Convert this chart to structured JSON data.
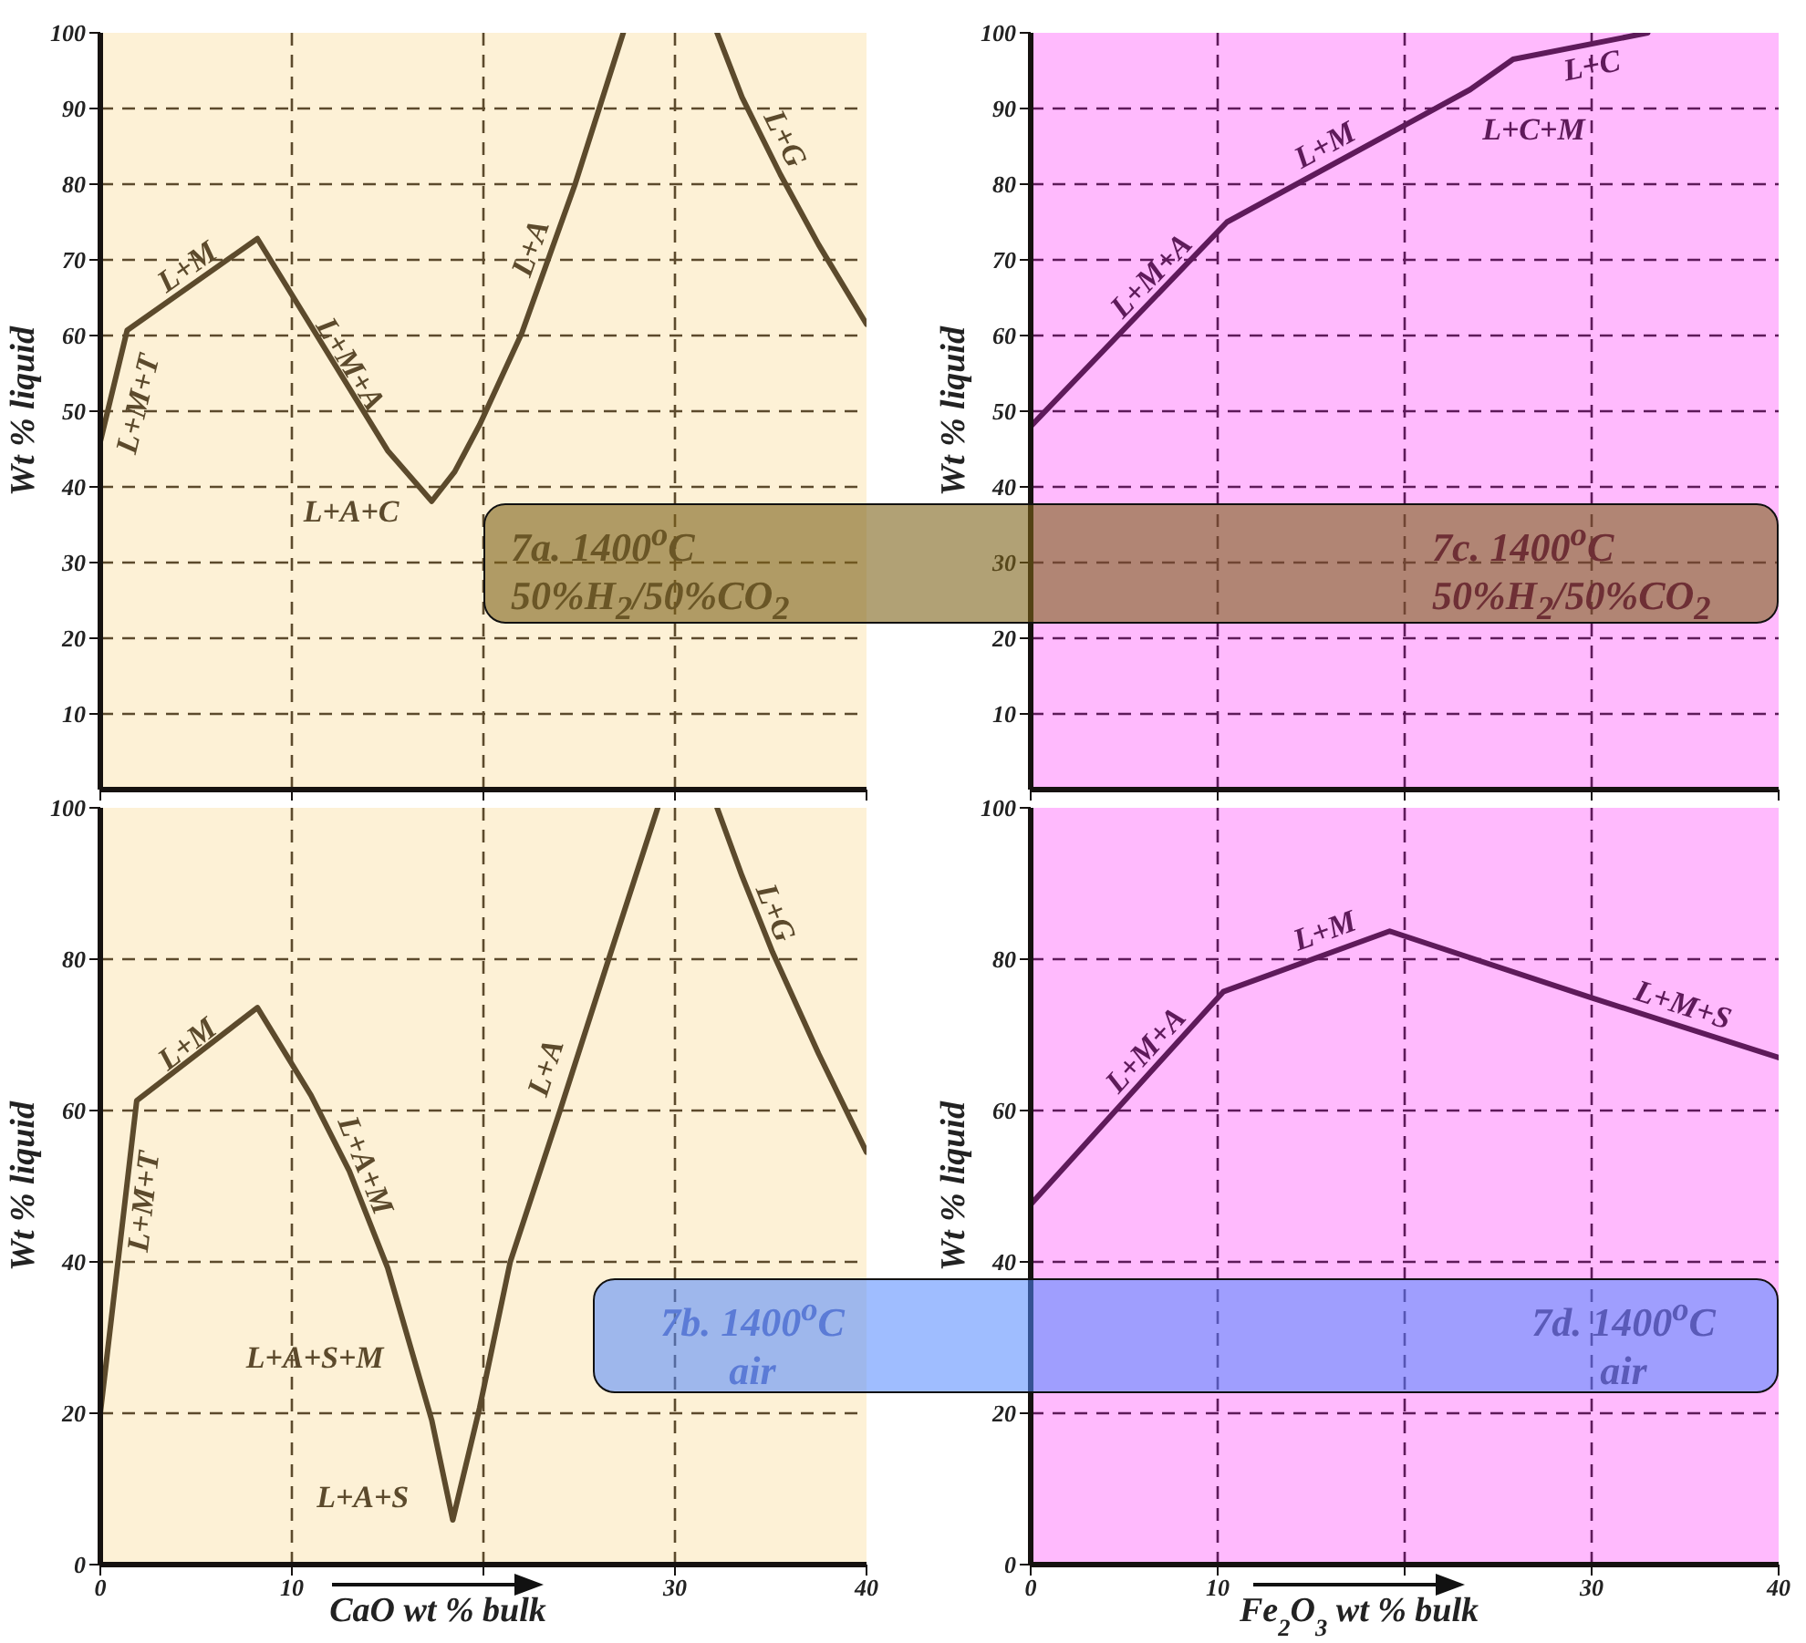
{
  "chart_data": [
    {
      "type": "line",
      "ylabel": "Wt % liquid",
      "x": [
        0,
        1.4,
        8.2,
        15,
        17.3,
        18.5,
        19.8,
        22,
        24.8,
        27.3,
        30,
        32.2,
        33.5,
        35.5,
        37.5,
        40
      ],
      "values": [
        46,
        60.7,
        72.8,
        44.8,
        38.1,
        42,
        48.2,
        60.3,
        80.1,
        100,
        null,
        100,
        91.5,
        81.3,
        72,
        61.5
      ],
      "color": "#5c4a2c",
      "xlim": [
        0,
        40
      ],
      "xticks": [
        0,
        10,
        20,
        30,
        40
      ],
      "ylim": [
        0,
        100
      ],
      "yticks": [
        10,
        20,
        30,
        40,
        50,
        60,
        70,
        80,
        90,
        100
      ],
      "grid": true,
      "tick_labels": "y",
      "annotations": [
        "L+M+T",
        "L+M",
        "L+M+A",
        "L+A+C",
        "L+A",
        "L+G",
        "7a. 1400$^{o}$C",
        "50%H$_{2}$/50%CO$_{2}$"
      ]
    },
    {
      "type": "line",
      "ylabel": "Wt % liquid",
      "x": [
        0,
        10.5,
        23.5,
        25.8,
        33
      ],
      "values": [
        48,
        75,
        92.5,
        96.5,
        100
      ],
      "color": "#5e1a5a",
      "xlim": [
        0,
        40
      ],
      "xticks": [
        0,
        10,
        20,
        30,
        40
      ],
      "ylim": [
        0,
        100
      ],
      "yticks": [
        10,
        20,
        30,
        40,
        50,
        60,
        70,
        80,
        90,
        100
      ],
      "grid": true,
      "tick_labels": "y",
      "annotations": [
        "L+M+A",
        "L+M",
        "L+C+M",
        "L+C",
        "7c. 1400$^{o}$C",
        "50%H$_{2}$/50%CO$_{2}$"
      ]
    },
    {
      "type": "line",
      "ylabel": "Wt % liquid",
      "xlabel": "CaO wt % bulk",
      "x": [
        0,
        1.9,
        8.2,
        11,
        13,
        15,
        17.3,
        18.4,
        19.8,
        21.4,
        24,
        26.5,
        29.1,
        30.5,
        32.2,
        33.5,
        35.1,
        37.5,
        40
      ],
      "values": [
        20,
        61.3,
        73.6,
        62,
        52,
        39.2,
        19.1,
        5.9,
        20.7,
        40,
        60,
        79.7,
        100,
        null,
        100,
        91,
        80.9,
        67.5,
        54.5
      ],
      "color": "#5c4a2c",
      "xlim": [
        0,
        40
      ],
      "xticks": [
        0,
        10,
        {
          "value": 20,
          "label": null
        },
        30,
        40
      ],
      "ylim": [
        0,
        100
      ],
      "yticks": [
        0,
        20,
        40,
        60,
        80,
        100
      ],
      "grid": true,
      "annotations": [
        "L+M+T",
        "L+M",
        "L+A+M",
        "L+A+S+M",
        "L+A+S",
        "L+A",
        "L+G",
        "7b. 1400$^{o}$C",
        "air"
      ]
    },
    {
      "type": "line",
      "ylabel": "Wt % liquid",
      "xlabel": "Fe$_{2}$O$_{3}$ wt % bulk",
      "x": [
        0,
        10.3,
        19.2,
        30,
        40
      ],
      "values": [
        47.6,
        75.7,
        83.7,
        74.9,
        67
      ],
      "color": "#5e1a5a",
      "xlim": [
        0,
        40
      ],
      "xticks": [
        0,
        10,
        {
          "value": 20,
          "label": null
        },
        30,
        40
      ],
      "ylim": [
        0,
        100
      ],
      "yticks": [
        0,
        20,
        40,
        60,
        80,
        100
      ],
      "grid": true,
      "annotations": [
        "L+M+A",
        "L+M",
        "L+M+S",
        "7d. 1400$^{o}$C",
        "air"
      ]
    }
  ]
}
